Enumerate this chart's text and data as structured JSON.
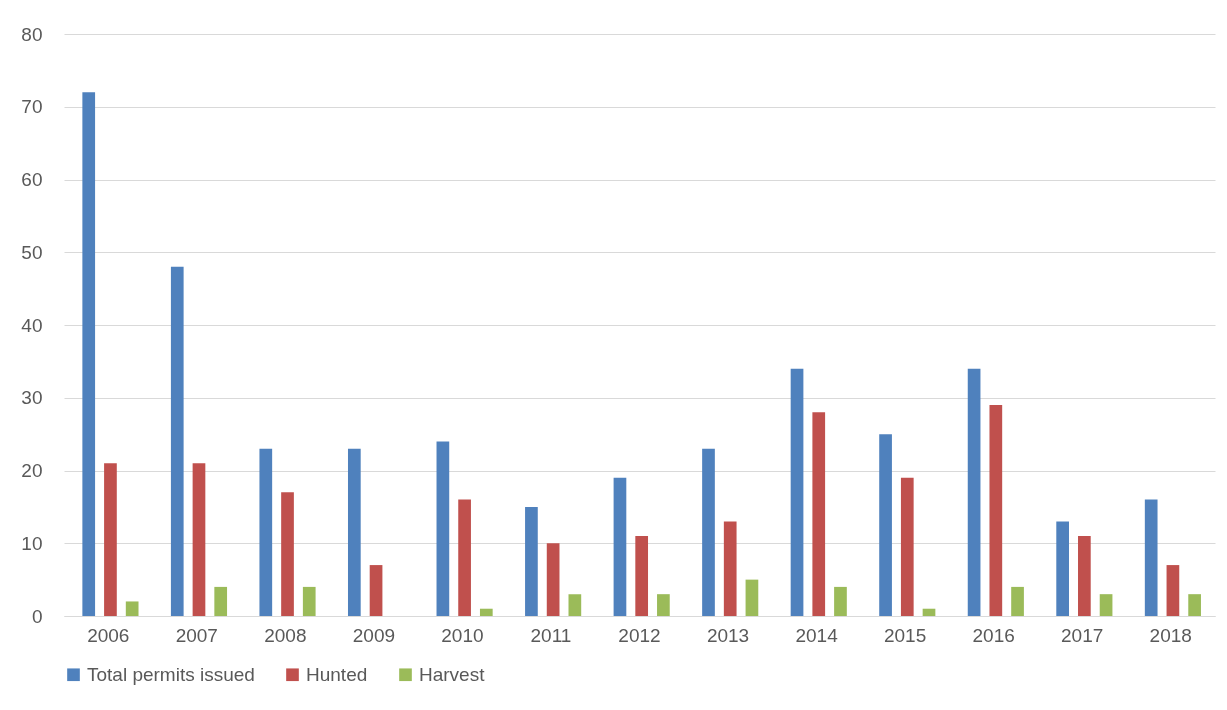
{
  "chart_data": {
    "type": "bar",
    "categories": [
      "2006",
      "2007",
      "2008",
      "2009",
      "2010",
      "2011",
      "2012",
      "2013",
      "2014",
      "2015",
      "2016",
      "2017",
      "2018"
    ],
    "series": [
      {
        "name": "Total permits issued",
        "color": "#4f81bd",
        "values": [
          72,
          48,
          23,
          23,
          24,
          15,
          19,
          23,
          34,
          25,
          34,
          13,
          16
        ]
      },
      {
        "name": "Hunted",
        "color": "#c0504d",
        "values": [
          21,
          21,
          17,
          7,
          16,
          10,
          11,
          13,
          28,
          19,
          29,
          11,
          7
        ]
      },
      {
        "name": "Harvest",
        "color": "#9bbb59",
        "values": [
          2,
          4,
          4,
          0,
          1,
          3,
          3,
          5,
          4,
          1,
          4,
          3,
          3
        ]
      }
    ],
    "ylim": [
      0,
      80
    ],
    "yticks": [
      0,
      10,
      20,
      30,
      40,
      50,
      60,
      70,
      80
    ],
    "grid": "y",
    "legend": "bottom"
  }
}
